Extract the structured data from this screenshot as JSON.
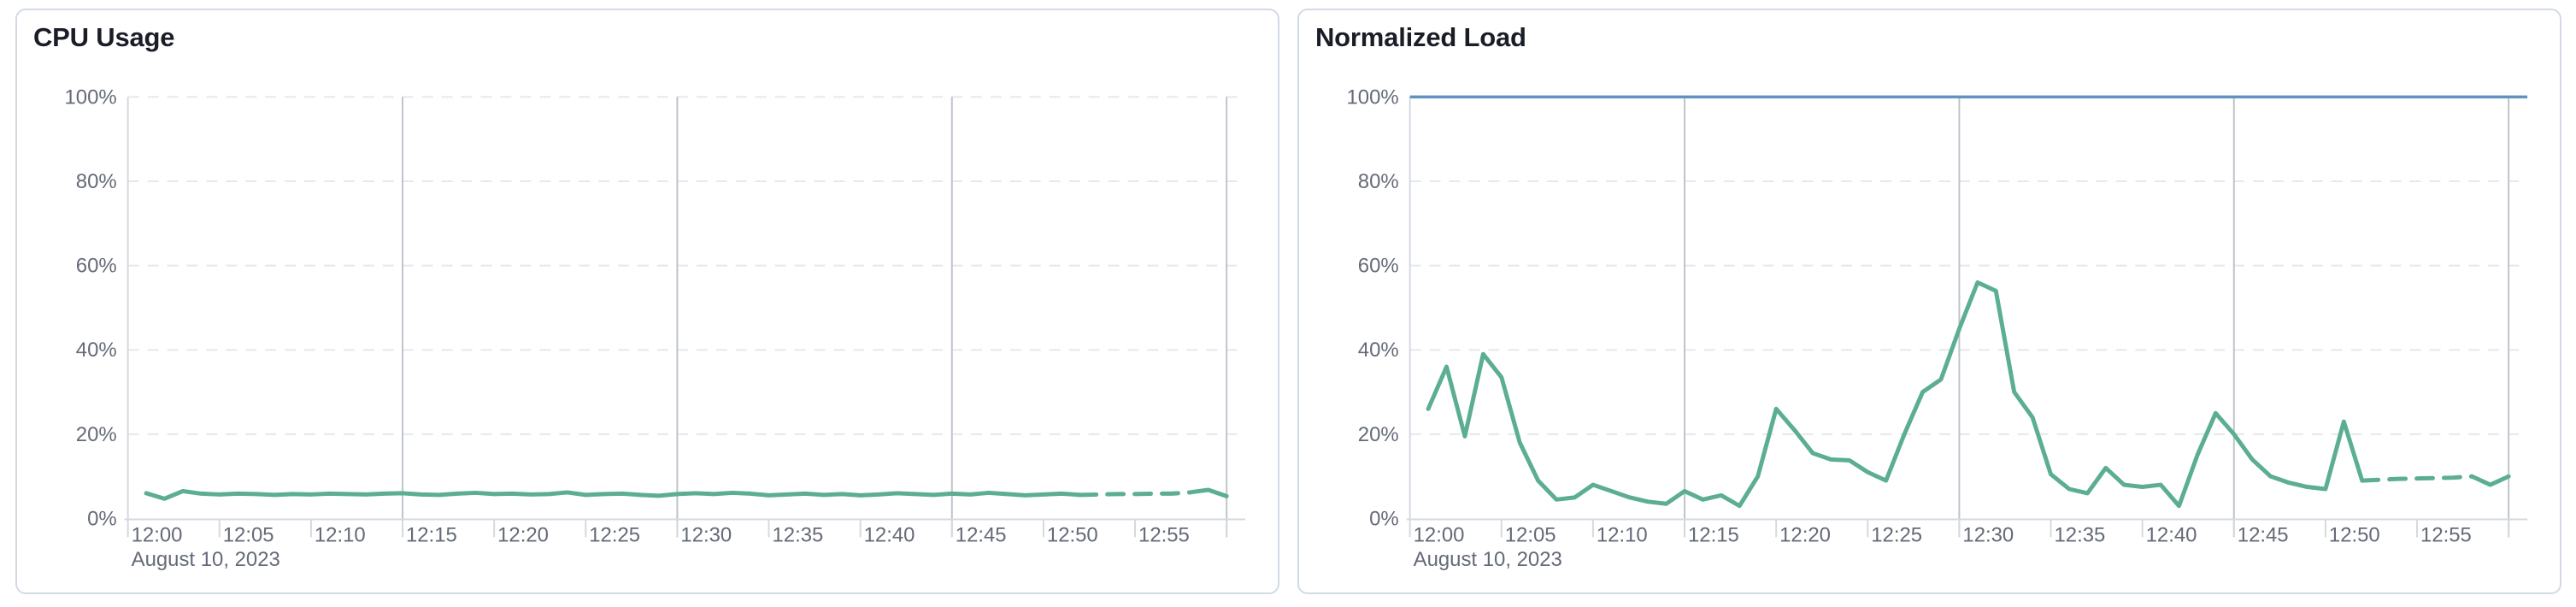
{
  "page": {
    "background_color": "#FFFFFF",
    "card_background": "#FFFFFF",
    "card_border_color": "#D3DAE6"
  },
  "style": {
    "series_green": "#5CAE93",
    "limit_blue": "#6092C0",
    "grid_dashed_color": "#E5E8EF",
    "grid_solid_color": "#BFC3CB",
    "axis_line_color": "#D5D9E0",
    "tick_color": "#D5D9E0",
    "axis_label_color": "#646A77",
    "title_color": "#1A1D27"
  },
  "chart_data": [
    {
      "type": "line",
      "title": "CPU Usage",
      "x_axis_date_label": "August 10, 2023",
      "x_domain_minutes": [
        0,
        60
      ],
      "x_domain_times": [
        "12:00",
        "13:00"
      ],
      "x_tick_labels": [
        "12:00",
        "12:05",
        "12:10",
        "12:15",
        "12:20",
        "12:25",
        "12:30",
        "12:35",
        "12:40",
        "12:45",
        "12:50",
        "12:55"
      ],
      "x_tick_interval_minutes": 5,
      "vertical_gridline_minutes": [
        15,
        30,
        45,
        60
      ],
      "ylim": [
        0,
        100
      ],
      "y_tick_labels": [
        "0%",
        "20%",
        "40%",
        "60%",
        "80%",
        "100%"
      ],
      "grid": {
        "horizontal": "dashed",
        "vertical": "solid",
        "legend": "none"
      },
      "series": [
        {
          "name": "cpu-usage",
          "color": "#5CAE93",
          "line_width": 5,
          "start_minute": 1,
          "interval_minutes": 1,
          "values": [
            6.0,
            4.7,
            6.5,
            5.9,
            5.7,
            5.9,
            5.8,
            5.6,
            5.8,
            5.7,
            5.9,
            5.8,
            5.7,
            5.9,
            6.0,
            5.7,
            5.6,
            5.9,
            6.1,
            5.8,
            5.9,
            5.7,
            5.8,
            6.2,
            5.6,
            5.8,
            5.9,
            5.6,
            5.4,
            5.8,
            6.0,
            5.8,
            6.1,
            5.9,
            5.5,
            5.7,
            5.9,
            5.6,
            5.8,
            5.5,
            5.7,
            6.0,
            5.8,
            5.6,
            5.9,
            5.7,
            6.1,
            5.8,
            5.5,
            5.7,
            5.9,
            5.6,
            5.7,
            5.8,
            5.8,
            5.9,
            5.9,
            6.2,
            6.8,
            5.3
          ],
          "segments": [
            {
              "from_minute": 1,
              "to_minute": 52,
              "style": "solid"
            },
            {
              "from_minute": 52,
              "to_minute": 58,
              "style": "dashed"
            },
            {
              "from_minute": 58,
              "to_minute": 60,
              "style": "solid"
            }
          ]
        }
      ]
    },
    {
      "type": "line",
      "title": "Normalized Load",
      "x_axis_date_label": "August 10, 2023",
      "x_domain_minutes": [
        0,
        60
      ],
      "x_domain_times": [
        "12:00",
        "13:00"
      ],
      "x_tick_labels": [
        "12:00",
        "12:05",
        "12:10",
        "12:15",
        "12:20",
        "12:25",
        "12:30",
        "12:35",
        "12:40",
        "12:45",
        "12:50",
        "12:55"
      ],
      "x_tick_interval_minutes": 5,
      "vertical_gridline_minutes": [
        15,
        30,
        45,
        60
      ],
      "ylim": [
        0,
        100
      ],
      "y_tick_labels": [
        "0%",
        "20%",
        "40%",
        "60%",
        "80%",
        "100%"
      ],
      "grid": {
        "horizontal": "dashed",
        "vertical": "solid",
        "legend": "none"
      },
      "series": [
        {
          "name": "normalized-load",
          "color": "#5CAE93",
          "line_width": 5,
          "start_minute": 1,
          "interval_minutes": 1,
          "values": [
            26,
            36,
            19.5,
            39,
            33.5,
            18,
            9,
            4.5,
            5,
            8,
            6.5,
            5,
            4,
            3.5,
            6.5,
            4.5,
            5.5,
            3,
            10,
            26,
            21,
            15.5,
            14,
            13.8,
            11,
            9,
            20,
            30,
            33,
            45,
            56,
            54,
            30,
            24,
            10.5,
            7,
            6,
            12,
            8,
            7.5,
            8,
            3,
            15,
            25,
            20,
            14,
            10,
            8.5,
            7.5,
            7,
            23,
            9,
            9.2,
            9.4,
            9.5,
            9.6,
            9.7,
            10,
            8,
            10
          ],
          "segments": [
            {
              "from_minute": 1,
              "to_minute": 52,
              "style": "solid"
            },
            {
              "from_minute": 52,
              "to_minute": 58,
              "style": "dashed"
            },
            {
              "from_minute": 58,
              "to_minute": 60,
              "style": "solid"
            }
          ]
        },
        {
          "name": "limit-100-percent",
          "color": "#6092C0",
          "line_width": 3.5,
          "constant_value": 100
        }
      ]
    }
  ]
}
